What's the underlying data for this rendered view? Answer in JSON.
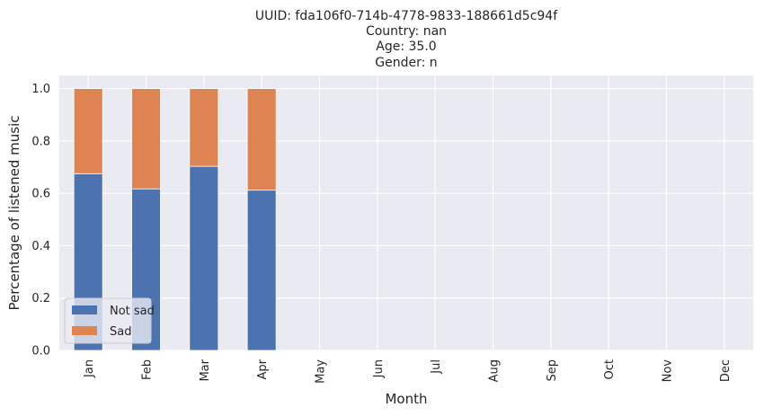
{
  "chart_data": {
    "type": "bar",
    "stacked": true,
    "title_lines": [
      "UUID: fda106f0-714b-4778-9833-188661d5c94f",
      "Country: nan",
      "Age: 35.0",
      "Gender: n"
    ],
    "xlabel": "Month",
    "ylabel": "Percentage of listened music",
    "categories": [
      "Jan",
      "Feb",
      "Mar",
      "Apr",
      "May",
      "Jun",
      "Jul",
      "Aug",
      "Sep",
      "Oct",
      "Nov",
      "Dec"
    ],
    "yticks": [
      "0.0",
      "0.2",
      "0.4",
      "0.6",
      "0.8",
      "1.0"
    ],
    "ylim": [
      0,
      1.05
    ],
    "grid": true,
    "legend_position": "lower-left",
    "series": [
      {
        "name": "Not sad",
        "color": "#4c72b0",
        "values": [
          0.675,
          0.617,
          0.703,
          0.612,
          0,
          0,
          0,
          0,
          0,
          0,
          0,
          0
        ]
      },
      {
        "name": "Sad",
        "color": "#dd8452",
        "values": [
          0.325,
          0.383,
          0.297,
          0.388,
          0,
          0,
          0,
          0,
          0,
          0,
          0,
          0
        ]
      }
    ],
    "plot_background": "#eaeaf2",
    "grid_color": "#ffffff"
  }
}
